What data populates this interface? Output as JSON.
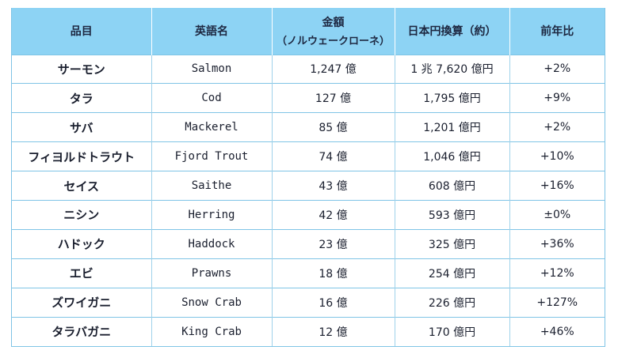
{
  "table": {
    "headers": {
      "item": "品目",
      "english": "英語名",
      "amount": "金額",
      "amount_sub": "（ノルウェークローネ）",
      "yen": "日本円換算（約）",
      "yoy": "前年比"
    },
    "rows": [
      {
        "item": "サーモン",
        "english": "Salmon",
        "amount": "1,247 億",
        "yen": "1 兆 7,620 億円",
        "yoy": "+2%"
      },
      {
        "item": "タラ",
        "english": "Cod",
        "amount": "127 億",
        "yen": "1,795 億円",
        "yoy": "+9%"
      },
      {
        "item": "サバ",
        "english": "Mackerel",
        "amount": "85 億",
        "yen": "1,201 億円",
        "yoy": "+2%"
      },
      {
        "item": "フィヨルドトラウト",
        "english": "Fjord Trout",
        "amount": "74 億",
        "yen": "1,046 億円",
        "yoy": "+10%"
      },
      {
        "item": "セイス",
        "english": "Saithe",
        "amount": "43 億",
        "yen": "608 億円",
        "yoy": "+16%"
      },
      {
        "item": "ニシン",
        "english": "Herring",
        "amount": "42 億",
        "yen": "593 億円",
        "yoy": "±0%"
      },
      {
        "item": "ハドック",
        "english": "Haddock",
        "amount": "23 億",
        "yen": "325 億円",
        "yoy": "+36%"
      },
      {
        "item": "エビ",
        "english": "Prawns",
        "amount": "18 億",
        "yen": "254 億円",
        "yoy": "+12%"
      },
      {
        "item": "ズワイガニ",
        "english": "Snow Crab",
        "amount": "16 億",
        "yen": "226 億円",
        "yoy": "+127%"
      },
      {
        "item": "タラバガニ",
        "english": "King Crab",
        "amount": "12 億",
        "yen": "170 億円",
        "yoy": "+46%"
      }
    ]
  }
}
